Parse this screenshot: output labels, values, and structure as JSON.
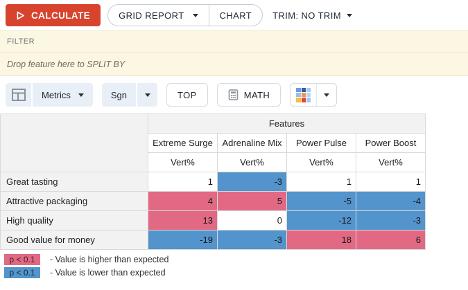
{
  "toolbar_top": {
    "calculate_label": "CALCULATE",
    "grid_report_label": "GRID REPORT",
    "chart_label": "CHART",
    "trim_label": "TRIM: NO TRIM"
  },
  "filter": {
    "label": "FILTER"
  },
  "split_by": {
    "hint": "Drop feature here to SPLIT BY"
  },
  "toolbar_table": {
    "metrics_label": "Metrics",
    "sgn_label": "Sgn",
    "top_label": "TOP",
    "math_label": "MATH",
    "palette_colors": [
      "#6d9ce0",
      "#2f5cb0",
      "#aec9f0",
      "#9cbdf0",
      "#ea9a3e",
      "#bcd4f4",
      "#f0c040",
      "#e04438",
      "#a8c6ee"
    ]
  },
  "table": {
    "group_header": "Features",
    "columns": [
      "Extreme Surge",
      "Adrenaline Mix",
      "Power Pulse",
      "Power Boost"
    ],
    "metric_labels": [
      "Vert%",
      "Vert%",
      "Vert%",
      "Vert%"
    ],
    "rows": [
      {
        "label": "Great tasting",
        "values": [
          1,
          -3,
          1,
          1
        ],
        "sig": [
          "none",
          "lower",
          "none",
          "none"
        ]
      },
      {
        "label": "Attractive packaging",
        "values": [
          4,
          5,
          -5,
          -4
        ],
        "sig": [
          "higher",
          "higher",
          "lower",
          "lower"
        ]
      },
      {
        "label": "High quality",
        "values": [
          13,
          0,
          -12,
          -3
        ],
        "sig": [
          "higher",
          "none",
          "lower",
          "lower"
        ]
      },
      {
        "label": "Good value for money",
        "values": [
          -19,
          -3,
          18,
          6
        ],
        "sig": [
          "lower",
          "lower",
          "higher",
          "higher"
        ]
      }
    ]
  },
  "legend": [
    {
      "badge": "p < 0.1",
      "type": "higher",
      "text": "- Value is higher than expected"
    },
    {
      "badge": "p < 0.1",
      "type": "lower",
      "text": "- Value is lower than expected"
    }
  ],
  "colors": {
    "higher": "#e16984",
    "lower": "#5394cc",
    "calculate_red": "#d7432d",
    "chip_bg": "#e9eff7",
    "header_bg": "#f2f2f2",
    "bar_bg": "#fcf7e3"
  }
}
